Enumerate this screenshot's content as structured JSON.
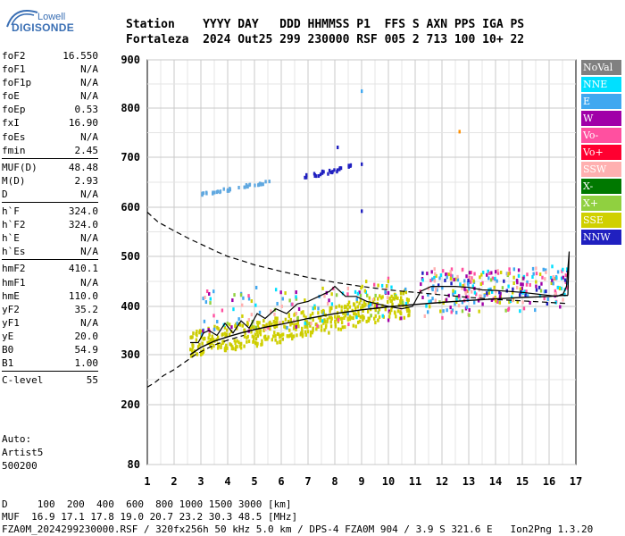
{
  "logo": {
    "line1": "Lowell",
    "line2": "DIGISONDE"
  },
  "header": {
    "line1": "Station    YYYY DAY   DDD HHMMSS P1  FFS S AXN PPS IGA PS",
    "line2": "Fortaleza  2024 Out25 299 230000 RSF 005 2 713 100 10+ 22"
  },
  "params_groups": [
    [
      {
        "label": "foF2",
        "value": "16.550"
      },
      {
        "label": "foF1",
        "value": "N/A"
      },
      {
        "label": "foF1p",
        "value": "N/A"
      },
      {
        "label": "foE",
        "value": "N/A"
      },
      {
        "label": "foEp",
        "value": "0.53"
      },
      {
        "label": "fxI",
        "value": "16.90"
      },
      {
        "label": "foEs",
        "value": "N/A"
      },
      {
        "label": "fmin",
        "value": "2.45"
      }
    ],
    [
      {
        "label": "MUF(D)",
        "value": "48.48"
      },
      {
        "label": "M(D)",
        "value": "2.93"
      },
      {
        "label": "D",
        "value": "N/A"
      }
    ],
    [
      {
        "label": "h`F",
        "value": "324.0"
      },
      {
        "label": "h`F2",
        "value": "324.0"
      },
      {
        "label": "h`E",
        "value": "N/A"
      },
      {
        "label": "h`Es",
        "value": "N/A"
      }
    ],
    [
      {
        "label": "hmF2",
        "value": "410.1"
      },
      {
        "label": "hmF1",
        "value": "N/A"
      },
      {
        "label": "hmE",
        "value": "110.0"
      },
      {
        "label": "yF2",
        "value": "35.2"
      },
      {
        "label": "yF1",
        "value": "N/A"
      },
      {
        "label": "yE",
        "value": "20.0"
      },
      {
        "label": "B0",
        "value": "54.9"
      },
      {
        "label": "B1",
        "value": "1.00"
      }
    ],
    [
      {
        "label": "C-level",
        "value": "55"
      }
    ]
  ],
  "autoscale": {
    "line1": "Auto:",
    "line2": "Artist5",
    "line3": "500200"
  },
  "legend": [
    {
      "label": "NoVal",
      "color": "#808080"
    },
    {
      "label": "NNE",
      "color": "#00e0ff"
    },
    {
      "label": "E",
      "color": "#40a8f0"
    },
    {
      "label": "W",
      "color": "#a000a8"
    },
    {
      "label": "Vo-",
      "color": "#ff50a0"
    },
    {
      "label": "Vo+",
      "color": "#ff0030"
    },
    {
      "label": "SSW",
      "color": "#ffb0b0"
    },
    {
      "label": "X-",
      "color": "#007800"
    },
    {
      "label": "X+",
      "color": "#90d040"
    },
    {
      "label": "SSE",
      "color": "#d0d000"
    },
    {
      "label": "NNW",
      "color": "#2020c0"
    }
  ],
  "footer": {
    "line1": "D     100  200  400  600  800 1000 1500 3000 [km]",
    "line2": "MUF  16.9 17.1 17.8 19.0 20.7 23.2 30.3 48.5 [MHz]",
    "line3": "FZA0M_2024299230000.RSF / 320fx256h 50 kHz 5.0 km / DPS-4 FZA0M 904 / 3.9 S 321.6 E   Ion2Png 1.3.20"
  },
  "chart_data": {
    "type": "scatter",
    "xlim": [
      1,
      17
    ],
    "ylim": [
      80,
      900
    ],
    "x_ticks": [
      1,
      2,
      3,
      4,
      5,
      6,
      7,
      8,
      9,
      10,
      11,
      12,
      13,
      14,
      15,
      16,
      17
    ],
    "y_ticks": [
      80,
      200,
      300,
      400,
      500,
      600,
      700,
      800,
      900
    ],
    "x_tick_labels": [
      "1",
      "2",
      "3",
      "4",
      "5",
      "6",
      "7",
      "8",
      "9",
      "10",
      "11",
      "12",
      "13",
      "14",
      "15",
      "16",
      "17"
    ],
    "y_tick_labels": [
      "80",
      "200",
      "300",
      "400",
      "500",
      "600",
      "700",
      "800",
      "900"
    ],
    "grid": true,
    "trace_profile": {
      "x": [
        2.6,
        2.9,
        3.1,
        3.3,
        3.6,
        3.9,
        4.2,
        4.5,
        4.8,
        5.1,
        5.4,
        5.8,
        6.2,
        6.6,
        7.0,
        7.4,
        7.8,
        8.0,
        8.4,
        8.8,
        9.2,
        9.6,
        10.0,
        10.5,
        10.9,
        11.2,
        11.6,
        12.0,
        12.5,
        13.0,
        13.5,
        14.0,
        14.5,
        15.0,
        15.5,
        16.0,
        16.3,
        16.5
      ],
      "y": [
        325,
        325,
        345,
        350,
        340,
        365,
        345,
        370,
        355,
        385,
        375,
        395,
        385,
        405,
        410,
        420,
        430,
        440,
        420,
        420,
        410,
        405,
        400,
        395,
        400,
        430,
        440,
        440,
        440,
        438,
        433,
        432,
        430,
        428,
        425,
        422,
        420,
        425
      ]
    },
    "density_profile": {
      "x": [
        2.6,
        3.0,
        3.5,
        4.0,
        4.5,
        5.0,
        5.5,
        6.0,
        7.0,
        8.0,
        9.0,
        10.0,
        11.0,
        12.0,
        13.0,
        14.0,
        15.0,
        16.0,
        16.5,
        16.7
      ],
      "y": [
        300,
        315,
        328,
        337,
        345,
        352,
        358,
        363,
        375,
        385,
        393,
        399,
        404,
        408,
        412,
        415,
        418,
        420,
        422,
        422
      ]
    },
    "cusp_line": {
      "x": [
        16.5,
        16.65,
        16.75,
        16.7
      ],
      "y": [
        422,
        440,
        510,
        422
      ]
    },
    "muf_dashed": {
      "x": [
        1.0,
        1.4,
        2.0,
        2.6,
        3.0,
        3.5,
        4.0,
        4.5,
        5.0,
        6.0,
        7.0,
        8.0,
        9.0,
        10.0,
        11.0,
        12.0,
        13.0,
        14.0,
        15.0,
        16.0,
        16.6
      ],
      "y": [
        590,
        570,
        552,
        535,
        525,
        512,
        500,
        492,
        483,
        470,
        458,
        448,
        440,
        433,
        428,
        423,
        418,
        414,
        411,
        408,
        406
      ]
    },
    "lower_dashed": {
      "x": [
        1.0,
        1.3,
        1.6,
        2.0,
        2.4,
        2.8,
        3.2,
        3.6,
        4.0,
        4.6
      ],
      "y": [
        235,
        245,
        258,
        270,
        285,
        300,
        312,
        322,
        330,
        340
      ]
    }
  }
}
